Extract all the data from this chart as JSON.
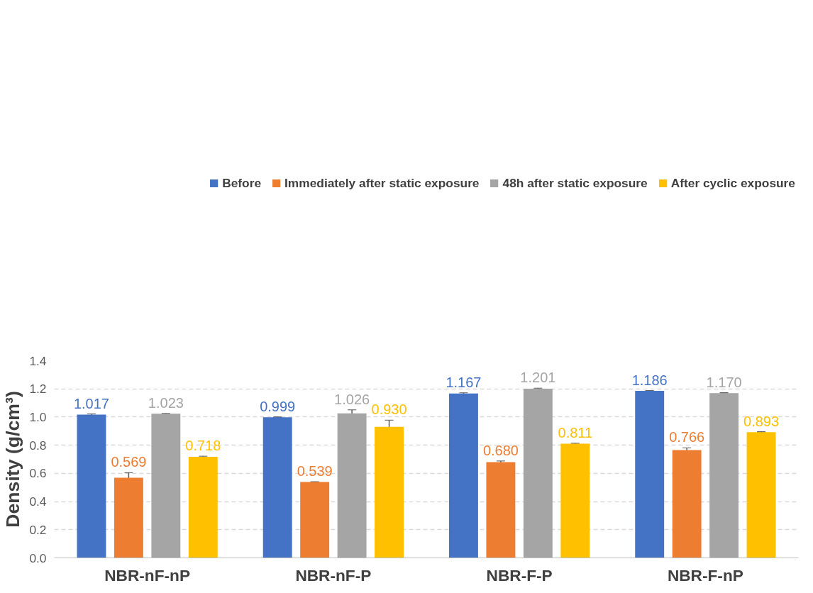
{
  "chart_data": {
    "type": "bar",
    "ylabel": "Density (g/cm³)",
    "categories": [
      "NBR-nF-nP",
      "NBR-nF-P",
      "NBR-F-P",
      "NBR-F-nP"
    ],
    "series": [
      {
        "name": "Before",
        "color": "#4472c4",
        "values": [
          1.017,
          0.999,
          1.167,
          1.186
        ],
        "value_labels": [
          "1.017",
          "0.999",
          "1.167",
          "1.186"
        ],
        "errors": [
          0.005,
          0.002,
          0.005,
          0.002
        ]
      },
      {
        "name": "Immediately after static exposure",
        "color": "#ed7d31",
        "values": [
          0.569,
          0.539,
          0.68,
          0.766
        ],
        "value_labels": [
          "0.569",
          "0.539",
          "0.680",
          "0.766"
        ],
        "errors": [
          0.036,
          0.002,
          0.008,
          0.015
        ]
      },
      {
        "name": "48h after static exposure",
        "color": "#a5a5a5",
        "values": [
          1.023,
          1.026,
          1.201,
          1.17
        ],
        "value_labels": [
          "1.023",
          "1.026",
          "1.201",
          "1.170"
        ],
        "errors": [
          0.003,
          0.025,
          0.004,
          0.003
        ]
      },
      {
        "name": "After cyclic exposure",
        "color": "#ffc000",
        "values": [
          0.718,
          0.93,
          0.811,
          0.893
        ],
        "value_labels": [
          "0.718",
          "0.930",
          "0.811",
          "0.893"
        ],
        "errors": [
          0.004,
          0.048,
          0.003,
          0.003
        ]
      }
    ],
    "ylim": [
      0,
      1.4
    ],
    "yticks": [
      {
        "value": 0,
        "label": "0.0"
      },
      {
        "value": 0.2,
        "label": "0.2"
      },
      {
        "value": 0.4,
        "label": "0.4"
      },
      {
        "value": 0.6,
        "label": "0.6"
      },
      {
        "value": 0.8,
        "label": "0.8"
      },
      {
        "value": 1.0,
        "label": "1.0"
      },
      {
        "value": 1.2,
        "label": "1.2"
      },
      {
        "value": 1.4,
        "label": "1.4"
      }
    ],
    "grid": "y",
    "legend": "top"
  }
}
